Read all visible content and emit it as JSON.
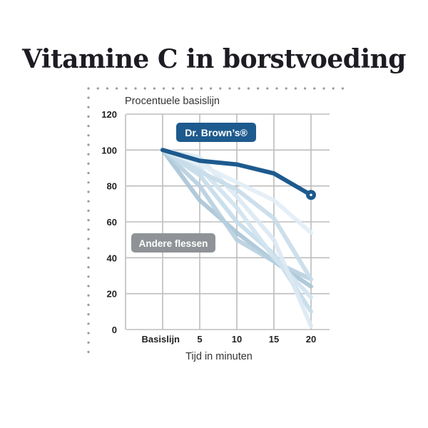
{
  "title": "Vitamine C in borstvoeding",
  "chart_data": {
    "type": "line",
    "ylabel": "Procentuele basislijn",
    "xlabel": "Tijd in minuten",
    "categories": [
      "Basislijn",
      "5",
      "10",
      "15",
      "20"
    ],
    "x": [
      0,
      5,
      10,
      15,
      20
    ],
    "ylim": [
      0,
      120
    ],
    "yticks": [
      "0",
      "20",
      "40",
      "60",
      "80",
      "100",
      "120"
    ],
    "grid": true,
    "labels": {
      "highlight": "Dr. Brown’s®",
      "others": "Andere flessen"
    },
    "series": [
      {
        "group": "highlight",
        "color": "#1d5a8e",
        "values": [
          100,
          94,
          92,
          87,
          75
        ]
      },
      {
        "group": "others",
        "color": "#a9c4d6",
        "values": [
          100,
          72,
          54,
          38,
          24
        ]
      },
      {
        "group": "others",
        "color": "#b7cfdf",
        "values": [
          100,
          80,
          50,
          38,
          28
        ]
      },
      {
        "group": "others",
        "color": "#c4dbea",
        "values": [
          100,
          86,
          60,
          42,
          10
        ]
      },
      {
        "group": "others",
        "color": "#d0e3f0",
        "values": [
          100,
          90,
          68,
          40,
          18
        ]
      },
      {
        "group": "others",
        "color": "#dce9f3",
        "values": [
          100,
          96,
          74,
          50,
          2
        ]
      },
      {
        "group": "others",
        "color": "#c8dcea",
        "values": [
          100,
          88,
          78,
          62,
          28
        ]
      },
      {
        "group": "others",
        "color": "#e2edf6",
        "values": [
          100,
          92,
          82,
          72,
          54
        ]
      }
    ]
  }
}
